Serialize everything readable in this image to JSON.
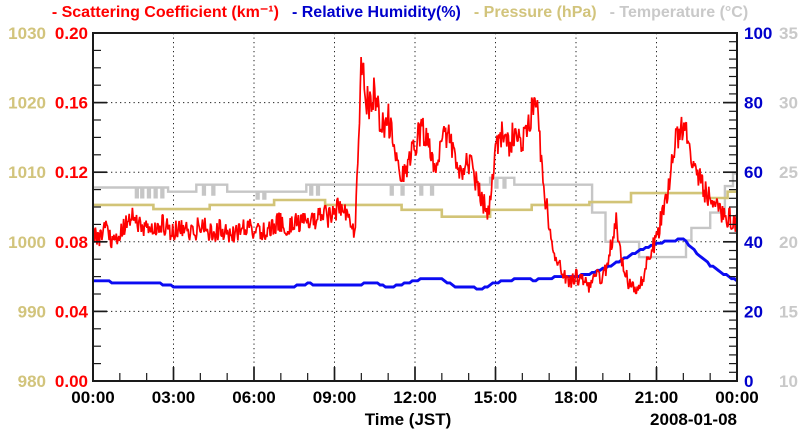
{
  "legend": [
    {
      "id": "scattering",
      "label": "- Scattering Coefficient (km⁻¹)",
      "color": "#ff0000"
    },
    {
      "id": "humidity",
      "label": "- Relative Humidity(%)",
      "color": "#0000cc"
    },
    {
      "id": "pressure",
      "label": "- Pressure (hPa)",
      "color": "#d2c47c"
    },
    {
      "id": "temperature",
      "label": "- Temperature (°C)",
      "color": "#c9c9c9"
    }
  ],
  "x_axis": {
    "title": "Time (JST)",
    "date": "2008-01-08",
    "tick_hours": [
      0,
      3,
      6,
      9,
      12,
      15,
      18,
      21,
      24
    ],
    "tick_labels": [
      "00:00",
      "03:00",
      "06:00",
      "09:00",
      "12:00",
      "15:00",
      "18:00",
      "21:00",
      "00:00"
    ]
  },
  "chart_data": {
    "type": "line",
    "x_unit": "time of day (JST hours, 0-24), date 2008-01-08",
    "grid": {
      "style": "dotted",
      "x_major_hours": [
        3,
        6,
        9,
        12,
        15,
        18,
        21
      ],
      "y_major_scattering": [
        0.04,
        0.08,
        0.12,
        0.16
      ]
    },
    "axes": {
      "scattering": {
        "title": "Scattering Coefficient (km⁻¹)",
        "min": 0,
        "max": 0.2,
        "side": "left-inner",
        "label_color": "#ff0000",
        "ticks": [
          {
            "v": 0.2,
            "t": "0.20"
          },
          {
            "v": 0.16,
            "t": "0.16"
          },
          {
            "v": 0.12,
            "t": "0.12"
          },
          {
            "v": 0.08,
            "t": "0.08"
          },
          {
            "v": 0.04,
            "t": "0.04"
          },
          {
            "v": 0.0,
            "t": "0.00"
          }
        ]
      },
      "pressure": {
        "title": "Pressure (hPa)",
        "min": 980,
        "max": 1030,
        "side": "left-outer",
        "label_color": "#d2c47c",
        "ticks": [
          {
            "v": 1030,
            "t": "1030"
          },
          {
            "v": 1020,
            "t": "1020"
          },
          {
            "v": 1010,
            "t": "1010"
          },
          {
            "v": 1000,
            "t": "1000"
          },
          {
            "v": 990,
            "t": "990"
          },
          {
            "v": 980,
            "t": "980"
          }
        ]
      },
      "humidity": {
        "title": "Relative Humidity(%)",
        "min": 0,
        "max": 100,
        "side": "right-inner",
        "label_color": "#0000cc",
        "ticks": [
          {
            "v": 100,
            "t": "100"
          },
          {
            "v": 80,
            "t": "80"
          },
          {
            "v": 60,
            "t": "60"
          },
          {
            "v": 40,
            "t": "40"
          },
          {
            "v": 20,
            "t": "20"
          },
          {
            "v": 0,
            "t": "0"
          }
        ]
      },
      "temperature": {
        "title": "Temperature (°C)",
        "min": 10,
        "max": 35,
        "side": "right-outer",
        "label_color": "#c9c9c9",
        "ticks": [
          {
            "v": 35,
            "t": "35"
          },
          {
            "v": 30,
            "t": "30"
          },
          {
            "v": 25,
            "t": "25"
          },
          {
            "v": 20,
            "t": "20"
          },
          {
            "v": 15,
            "t": "15"
          },
          {
            "v": 10,
            "t": "10"
          }
        ]
      }
    },
    "series": [
      {
        "name": "Scattering Coefficient",
        "axis": "scattering",
        "color": "#ff0000",
        "style": "noisy",
        "x_start": 0,
        "x_step": 0.25,
        "values": [
          0.085,
          0.082,
          0.088,
          0.079,
          0.086,
          0.092,
          0.097,
          0.088,
          0.09,
          0.085,
          0.092,
          0.088,
          0.086,
          0.09,
          0.088,
          0.085,
          0.09,
          0.087,
          0.084,
          0.088,
          0.086,
          0.083,
          0.086,
          0.089,
          0.087,
          0.085,
          0.088,
          0.09,
          0.092,
          0.089,
          0.093,
          0.091,
          0.095,
          0.092,
          0.096,
          0.094,
          0.098,
          0.1,
          0.096,
          0.083,
          0.18,
          0.158,
          0.166,
          0.146,
          0.152,
          0.128,
          0.118,
          0.126,
          0.136,
          0.146,
          0.133,
          0.125,
          0.138,
          0.142,
          0.128,
          0.121,
          0.126,
          0.117,
          0.104,
          0.094,
          0.133,
          0.141,
          0.137,
          0.144,
          0.139,
          0.147,
          0.163,
          0.118,
          0.09,
          0.071,
          0.061,
          0.056,
          0.06,
          0.057,
          0.054,
          0.061,
          0.058,
          0.074,
          0.092,
          0.065,
          0.055,
          0.052,
          0.06,
          0.072,
          0.082,
          0.098,
          0.118,
          0.14,
          0.147,
          0.132,
          0.119,
          0.111,
          0.104,
          0.1,
          0.096,
          0.093,
          0.09
        ]
      },
      {
        "name": "Relative Humidity",
        "axis": "humidity",
        "color": "#0b0bf2",
        "style": "steppy",
        "x_start": 0,
        "x_step": 0.5,
        "values": [
          28.6,
          28.6,
          28.3,
          28.3,
          28.3,
          28.0,
          27.2,
          26.9,
          26.9,
          26.9,
          26.9,
          26.9,
          26.9,
          26.9,
          26.9,
          27.2,
          28.0,
          27.5,
          27.5,
          27.7,
          27.9,
          28.2,
          27.0,
          27.7,
          29.0,
          29.3,
          29.3,
          27.0,
          26.8,
          26.6,
          28.3,
          29.0,
          29.3,
          29.0,
          29.6,
          29.9,
          30.0,
          30.8,
          32.2,
          33.9,
          35.9,
          37.9,
          39.4,
          40.3,
          40.7,
          36.8,
          33.3,
          30.9,
          28.7
        ]
      },
      {
        "name": "Pressure",
        "axis": "pressure",
        "color": "#d2c477",
        "style": "step",
        "points": [
          [
            0,
            1005.3
          ],
          [
            2.25,
            1004.7
          ],
          [
            4.35,
            1005.3
          ],
          [
            6.75,
            1006.0
          ],
          [
            8.65,
            1005.3
          ],
          [
            11.5,
            1004.6
          ],
          [
            13.0,
            1003.6
          ],
          [
            14.8,
            1004.6
          ],
          [
            16.35,
            1005.3
          ],
          [
            18.5,
            1005.7
          ],
          [
            20.05,
            1007.0
          ],
          [
            22.85,
            1006.3
          ],
          [
            23.65,
            1007.2
          ],
          [
            24,
            1007.2
          ]
        ]
      },
      {
        "name": "Temperature",
        "axis": "temperature",
        "color": "#c6c6c6",
        "style": "step",
        "points": [
          [
            0,
            23.9
          ],
          [
            1.6,
            23.2
          ],
          [
            1.67,
            23.9
          ],
          [
            1.8,
            23.2
          ],
          [
            1.87,
            23.9
          ],
          [
            2.05,
            23.2
          ],
          [
            2.12,
            23.9
          ],
          [
            2.3,
            23.2
          ],
          [
            2.37,
            23.9
          ],
          [
            2.55,
            23.2
          ],
          [
            2.62,
            23.9
          ],
          [
            2.8,
            23.6
          ],
          [
            3.85,
            24.1
          ],
          [
            4.1,
            23.4
          ],
          [
            4.17,
            24.1
          ],
          [
            4.45,
            23.4
          ],
          [
            4.52,
            24.1
          ],
          [
            5.0,
            23.6
          ],
          [
            6.1,
            23.1
          ],
          [
            6.17,
            23.6
          ],
          [
            6.35,
            23.1
          ],
          [
            6.42,
            23.6
          ],
          [
            7.95,
            24.1
          ],
          [
            8.1,
            23.4
          ],
          [
            8.17,
            24.1
          ],
          [
            8.35,
            23.4
          ],
          [
            8.42,
            24.1
          ],
          [
            11.1,
            23.4
          ],
          [
            11.17,
            24.1
          ],
          [
            11.5,
            23.4
          ],
          [
            11.57,
            24.1
          ],
          [
            12.2,
            23.4
          ],
          [
            12.27,
            24.1
          ],
          [
            12.6,
            23.4
          ],
          [
            12.67,
            24.1
          ],
          [
            14.8,
            24.6
          ],
          [
            15.0,
            23.9
          ],
          [
            15.07,
            24.6
          ],
          [
            15.3,
            23.9
          ],
          [
            15.37,
            24.6
          ],
          [
            15.7,
            24.1
          ],
          [
            18.6,
            22.1
          ],
          [
            19.1,
            20.0
          ],
          [
            20.35,
            18.9
          ],
          [
            22.1,
            20.1
          ],
          [
            22.3,
            21.0
          ],
          [
            23.0,
            22.1
          ],
          [
            23.55,
            24.0
          ],
          [
            23.85,
            24.9
          ],
          [
            24,
            24.9
          ]
        ]
      }
    ]
  }
}
